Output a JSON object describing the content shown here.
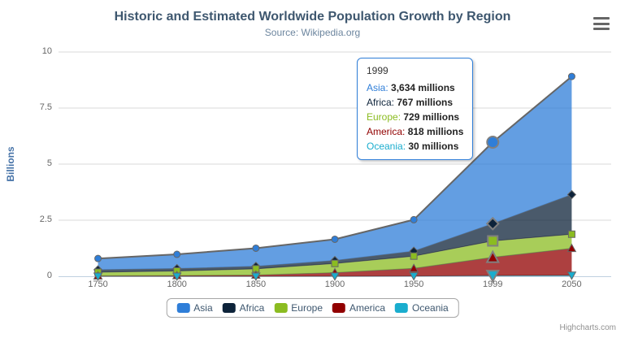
{
  "chart": {
    "title": "Historic and Estimated Worldwide Population Growth by Region",
    "subtitle": "Source: Wikipedia.org",
    "credits": "Highcharts.com",
    "context_menu_icon": "hamburger-icon",
    "background_color": "#ffffff",
    "grid_color": "#d8d8d8",
    "axis_line_color": "#C0D0E0",
    "series_line_color": "#666666",
    "text_colors": {
      "title": "#3E576F",
      "subtitle": "#6D869F",
      "axis_label": "#666666",
      "axis_title": "#4572A7",
      "legend": "#3E576F"
    }
  },
  "chart_data": {
    "type": "area",
    "stacking": "normal",
    "title": "Historic and Estimated Worldwide Population Growth by Region",
    "subtitle": "Source: Wikipedia.org",
    "categories": [
      "1750",
      "1800",
      "1850",
      "1900",
      "1950",
      "1999",
      "2050"
    ],
    "series": [
      {
        "name": "Asia",
        "color": "#2f7ed8",
        "marker": "circle",
        "values": [
          502,
          635,
          809,
          947,
          1402,
          3634,
          5268
        ]
      },
      {
        "name": "Africa",
        "color": "#0d233a",
        "marker": "diamond",
        "values": [
          106,
          107,
          111,
          133,
          221,
          767,
          1766
        ]
      },
      {
        "name": "Europe",
        "color": "#8bbc21",
        "marker": "square",
        "values": [
          163,
          203,
          276,
          408,
          547,
          729,
          628
        ]
      },
      {
        "name": "America",
        "color": "#910000",
        "marker": "triangle",
        "values": [
          18,
          31,
          54,
          156,
          339,
          818,
          1201
        ]
      },
      {
        "name": "Oceania",
        "color": "#1aadce",
        "marker": "triangle-down",
        "values": [
          2,
          2,
          2,
          6,
          13,
          30,
          46
        ]
      }
    ],
    "values_unit": "millions",
    "xlabel": "",
    "ylabel": "Billions",
    "ylim": [
      0,
      10
    ],
    "y_ticks": [
      0,
      2.5,
      5,
      7.5,
      10
    ],
    "grid": true,
    "legend_position": "bottom",
    "fill_opacity": 0.75,
    "hovered_category": "1999",
    "hovered_category_index": 5,
    "hovered_series": "Asia"
  },
  "tooltip": {
    "title": "1999",
    "rows": [
      {
        "name": "Asia",
        "value": "3,634 millions"
      },
      {
        "name": "Africa",
        "value": "767 millions"
      },
      {
        "name": "Europe",
        "value": "729 millions"
      },
      {
        "name": "America",
        "value": "818 millions"
      },
      {
        "name": "Oceania",
        "value": "30 millions"
      }
    ]
  }
}
